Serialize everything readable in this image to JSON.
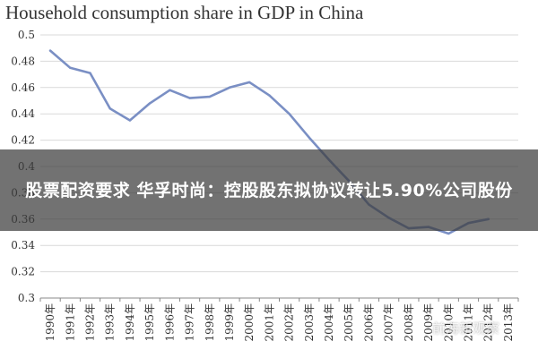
{
  "chart_data": {
    "type": "line",
    "title": "Household consumption share in GDP in China",
    "x": [
      "1990年",
      "1991年",
      "1992年",
      "1993年",
      "1994年",
      "1995年",
      "1996年",
      "1997年",
      "1998年",
      "1999年",
      "2000年",
      "2001年",
      "2002年",
      "2003年",
      "2004年",
      "2005年",
      "2006年",
      "2007年",
      "2008年",
      "2009年",
      "2010年",
      "2011年",
      "2012年",
      "2013年"
    ],
    "series": [
      {
        "values": [
          0.488,
          0.475,
          0.471,
          0.444,
          0.435,
          0.448,
          0.458,
          0.452,
          0.453,
          0.46,
          0.464,
          0.454,
          0.44,
          0.422,
          0.405,
          0.389,
          0.371,
          0.361,
          0.353,
          0.354,
          0.349,
          0.357,
          0.36,
          null
        ]
      }
    ],
    "y_ticks": [
      "0.3",
      "0.32",
      "0.34",
      "0.36",
      "0.38",
      "0.4",
      "0.42",
      "0.44",
      "0.46",
      "0.48",
      "0.5"
    ],
    "ylim": [
      0.3,
      0.5
    ],
    "grid": "horizontal",
    "line_color": "#7a8fc4",
    "grid_color": "#d9d9d9"
  },
  "overlay": {
    "text": "股票配资要求 华孚时尚：控股股东拟协议转让5.90%公司股份"
  },
  "watermark": "前海新观察"
}
